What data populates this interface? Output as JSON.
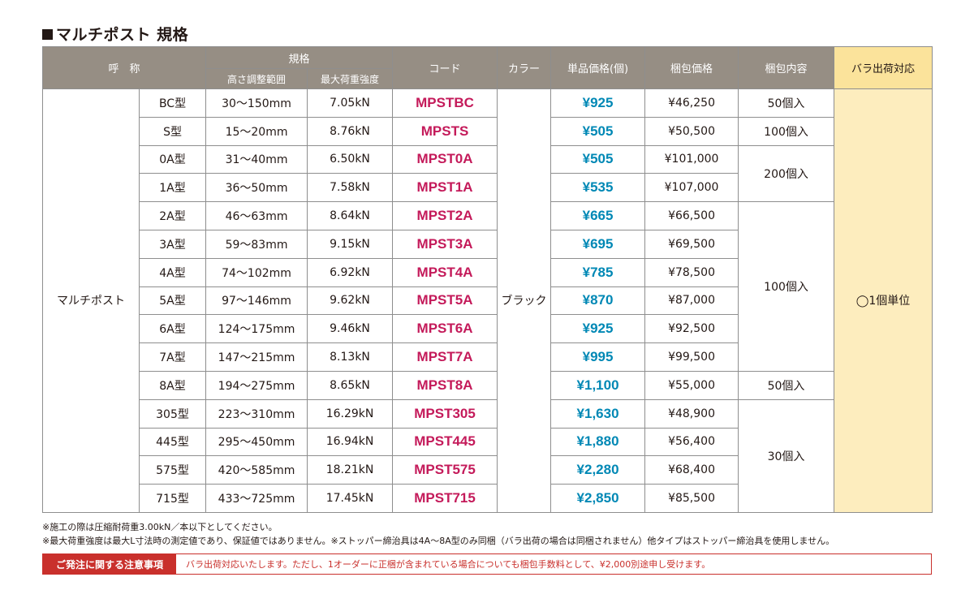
{
  "title": "マルチポスト 規格",
  "header": {
    "name": "呼　称",
    "spec": "規格",
    "height_range": "高さ調整範囲",
    "max_load": "最大荷重強度",
    "code": "コード",
    "color": "カラー",
    "unit_price": "単品価格(個)",
    "pack_price": "梱包価格",
    "pack_content": "梱包内容",
    "bulk": "バラ出荷対応"
  },
  "product_name": "マルチポスト",
  "color_value": "ブラック",
  "bulk_value": "◯1個単位",
  "pack_groups": [
    {
      "label": "50個入",
      "rows": 1
    },
    {
      "label": "100個入",
      "rows": 1
    },
    {
      "label": "200個入",
      "rows": 2
    },
    {
      "label": "100個入",
      "rows": 6
    },
    {
      "label": "50個入",
      "rows": 1
    },
    {
      "label": "30個入",
      "rows": 4
    }
  ],
  "rows": [
    {
      "type": "BC型",
      "range": "30〜150mm",
      "load": "7.05kN",
      "code": "MPSTBC",
      "price": "¥925",
      "pack_price": "¥46,250"
    },
    {
      "type": "S型",
      "range": "15〜20mm",
      "load": "8.76kN",
      "code": "MPSTS",
      "price": "¥505",
      "pack_price": "¥50,500"
    },
    {
      "type": "0A型",
      "range": "31〜40mm",
      "load": "6.50kN",
      "code": "MPST0A",
      "price": "¥505",
      "pack_price": "¥101,000"
    },
    {
      "type": "1A型",
      "range": "36〜50mm",
      "load": "7.58kN",
      "code": "MPST1A",
      "price": "¥535",
      "pack_price": "¥107,000"
    },
    {
      "type": "2A型",
      "range": "46〜63mm",
      "load": "8.64kN",
      "code": "MPST2A",
      "price": "¥665",
      "pack_price": "¥66,500"
    },
    {
      "type": "3A型",
      "range": "59〜83mm",
      "load": "9.15kN",
      "code": "MPST3A",
      "price": "¥695",
      "pack_price": "¥69,500"
    },
    {
      "type": "4A型",
      "range": "74〜102mm",
      "load": "6.92kN",
      "code": "MPST4A",
      "price": "¥785",
      "pack_price": "¥78,500"
    },
    {
      "type": "5A型",
      "range": "97〜146mm",
      "load": "9.62kN",
      "code": "MPST5A",
      "price": "¥870",
      "pack_price": "¥87,000"
    },
    {
      "type": "6A型",
      "range": "124〜175mm",
      "load": "9.46kN",
      "code": "MPST6A",
      "price": "¥925",
      "pack_price": "¥92,500"
    },
    {
      "type": "7A型",
      "range": "147〜215mm",
      "load": "8.13kN",
      "code": "MPST7A",
      "price": "¥995",
      "pack_price": "¥99,500"
    },
    {
      "type": "8A型",
      "range": "194〜275mm",
      "load": "8.65kN",
      "code": "MPST8A",
      "price": "¥1,100",
      "pack_price": "¥55,000"
    },
    {
      "type": "305型",
      "range": "223〜310mm",
      "load": "16.29kN",
      "code": "MPST305",
      "price": "¥1,630",
      "pack_price": "¥48,900"
    },
    {
      "type": "445型",
      "range": "295〜450mm",
      "load": "16.94kN",
      "code": "MPST445",
      "price": "¥1,880",
      "pack_price": "¥56,400"
    },
    {
      "type": "575型",
      "range": "420〜585mm",
      "load": "18.21kN",
      "code": "MPST575",
      "price": "¥2,280",
      "pack_price": "¥68,400"
    },
    {
      "type": "715型",
      "range": "433〜725mm",
      "load": "17.45kN",
      "code": "MPST715",
      "price": "¥2,850",
      "pack_price": "¥85,500"
    }
  ],
  "notes": [
    "※施工の際は圧縮耐荷重3.00kN／本以下としてください。",
    "※最大荷重強度は最大L寸法時の測定値であり、保証値ではありません。※ストッパー締治具は4A〜8A型のみ同梱（バラ出荷の場合は同梱されません）他タイプはストッパー締治具を使用しません。"
  ],
  "notice": {
    "label": "ご発注に関する注意事項",
    "text": "バラ出荷対応いたします。ただし、1オーダーに正梱が含まれている場合についても梱包手数料として、¥2,000別途申し受けます。"
  },
  "colors": {
    "header_bg": "#968e84",
    "bulk_bg": "#fdedbe",
    "code_text": "#c41a5a",
    "price_text": "#0088b5",
    "notice_red": "#c9302c"
  }
}
